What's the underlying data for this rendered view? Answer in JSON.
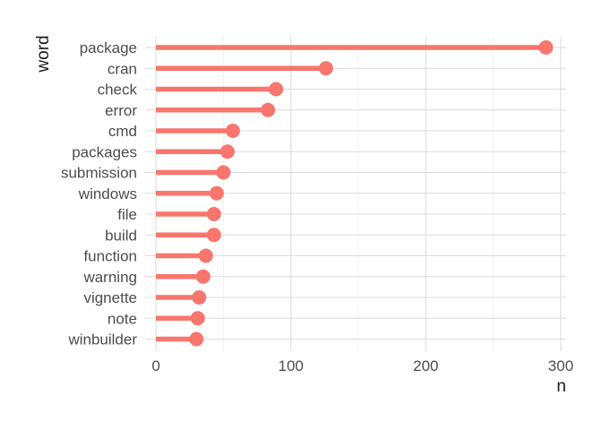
{
  "chart_data": {
    "type": "lollipop",
    "xlabel": "n",
    "ylabel": "word",
    "xlim": [
      -8,
      304
    ],
    "xticks": [
      0,
      100,
      200,
      300
    ],
    "grid": true,
    "color": "#F8766D",
    "categories": [
      "package",
      "cran",
      "check",
      "error",
      "cmd",
      "packages",
      "submission",
      "windows",
      "file",
      "build",
      "function",
      "warning",
      "vignette",
      "note",
      "winbuilder"
    ],
    "values": [
      289,
      126,
      89,
      83,
      57,
      53,
      50,
      45,
      43,
      43,
      37,
      35,
      32,
      31,
      30
    ]
  }
}
